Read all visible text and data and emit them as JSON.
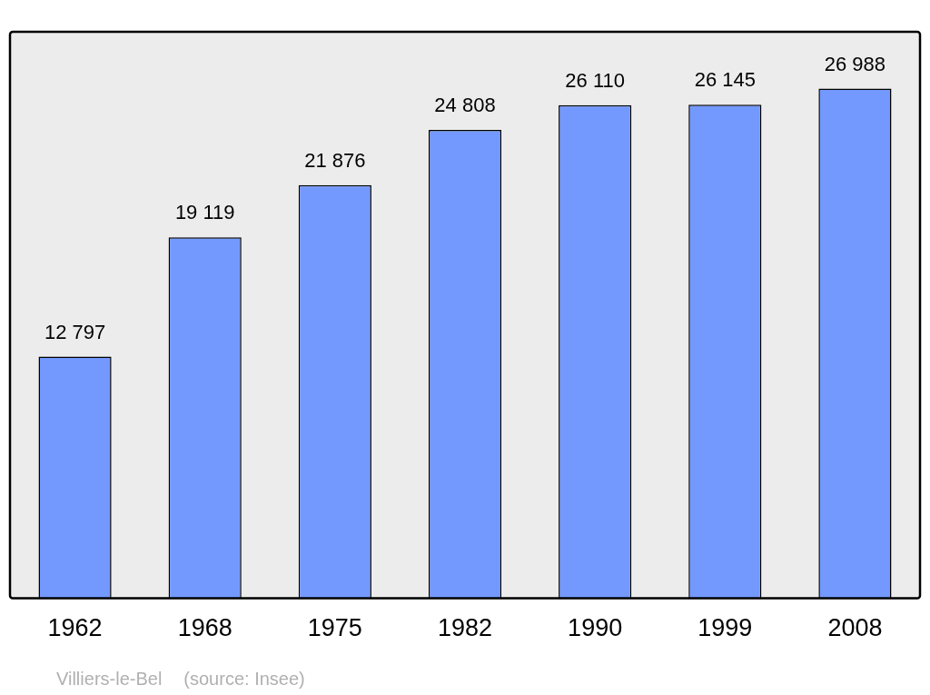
{
  "chart_data": {
    "type": "bar",
    "categories": [
      "1962",
      "1968",
      "1975",
      "1982",
      "1990",
      "1999",
      "2008"
    ],
    "values": [
      12797,
      19119,
      21876,
      24808,
      26110,
      26145,
      26988
    ],
    "value_labels": [
      "12 797",
      "19 119",
      "21 876",
      "24 808",
      "26 110",
      "26 145",
      "26 988"
    ],
    "color": "#7399ff",
    "annotations": [
      "Villiers-le-Bel",
      "(source: Insee)"
    ]
  }
}
